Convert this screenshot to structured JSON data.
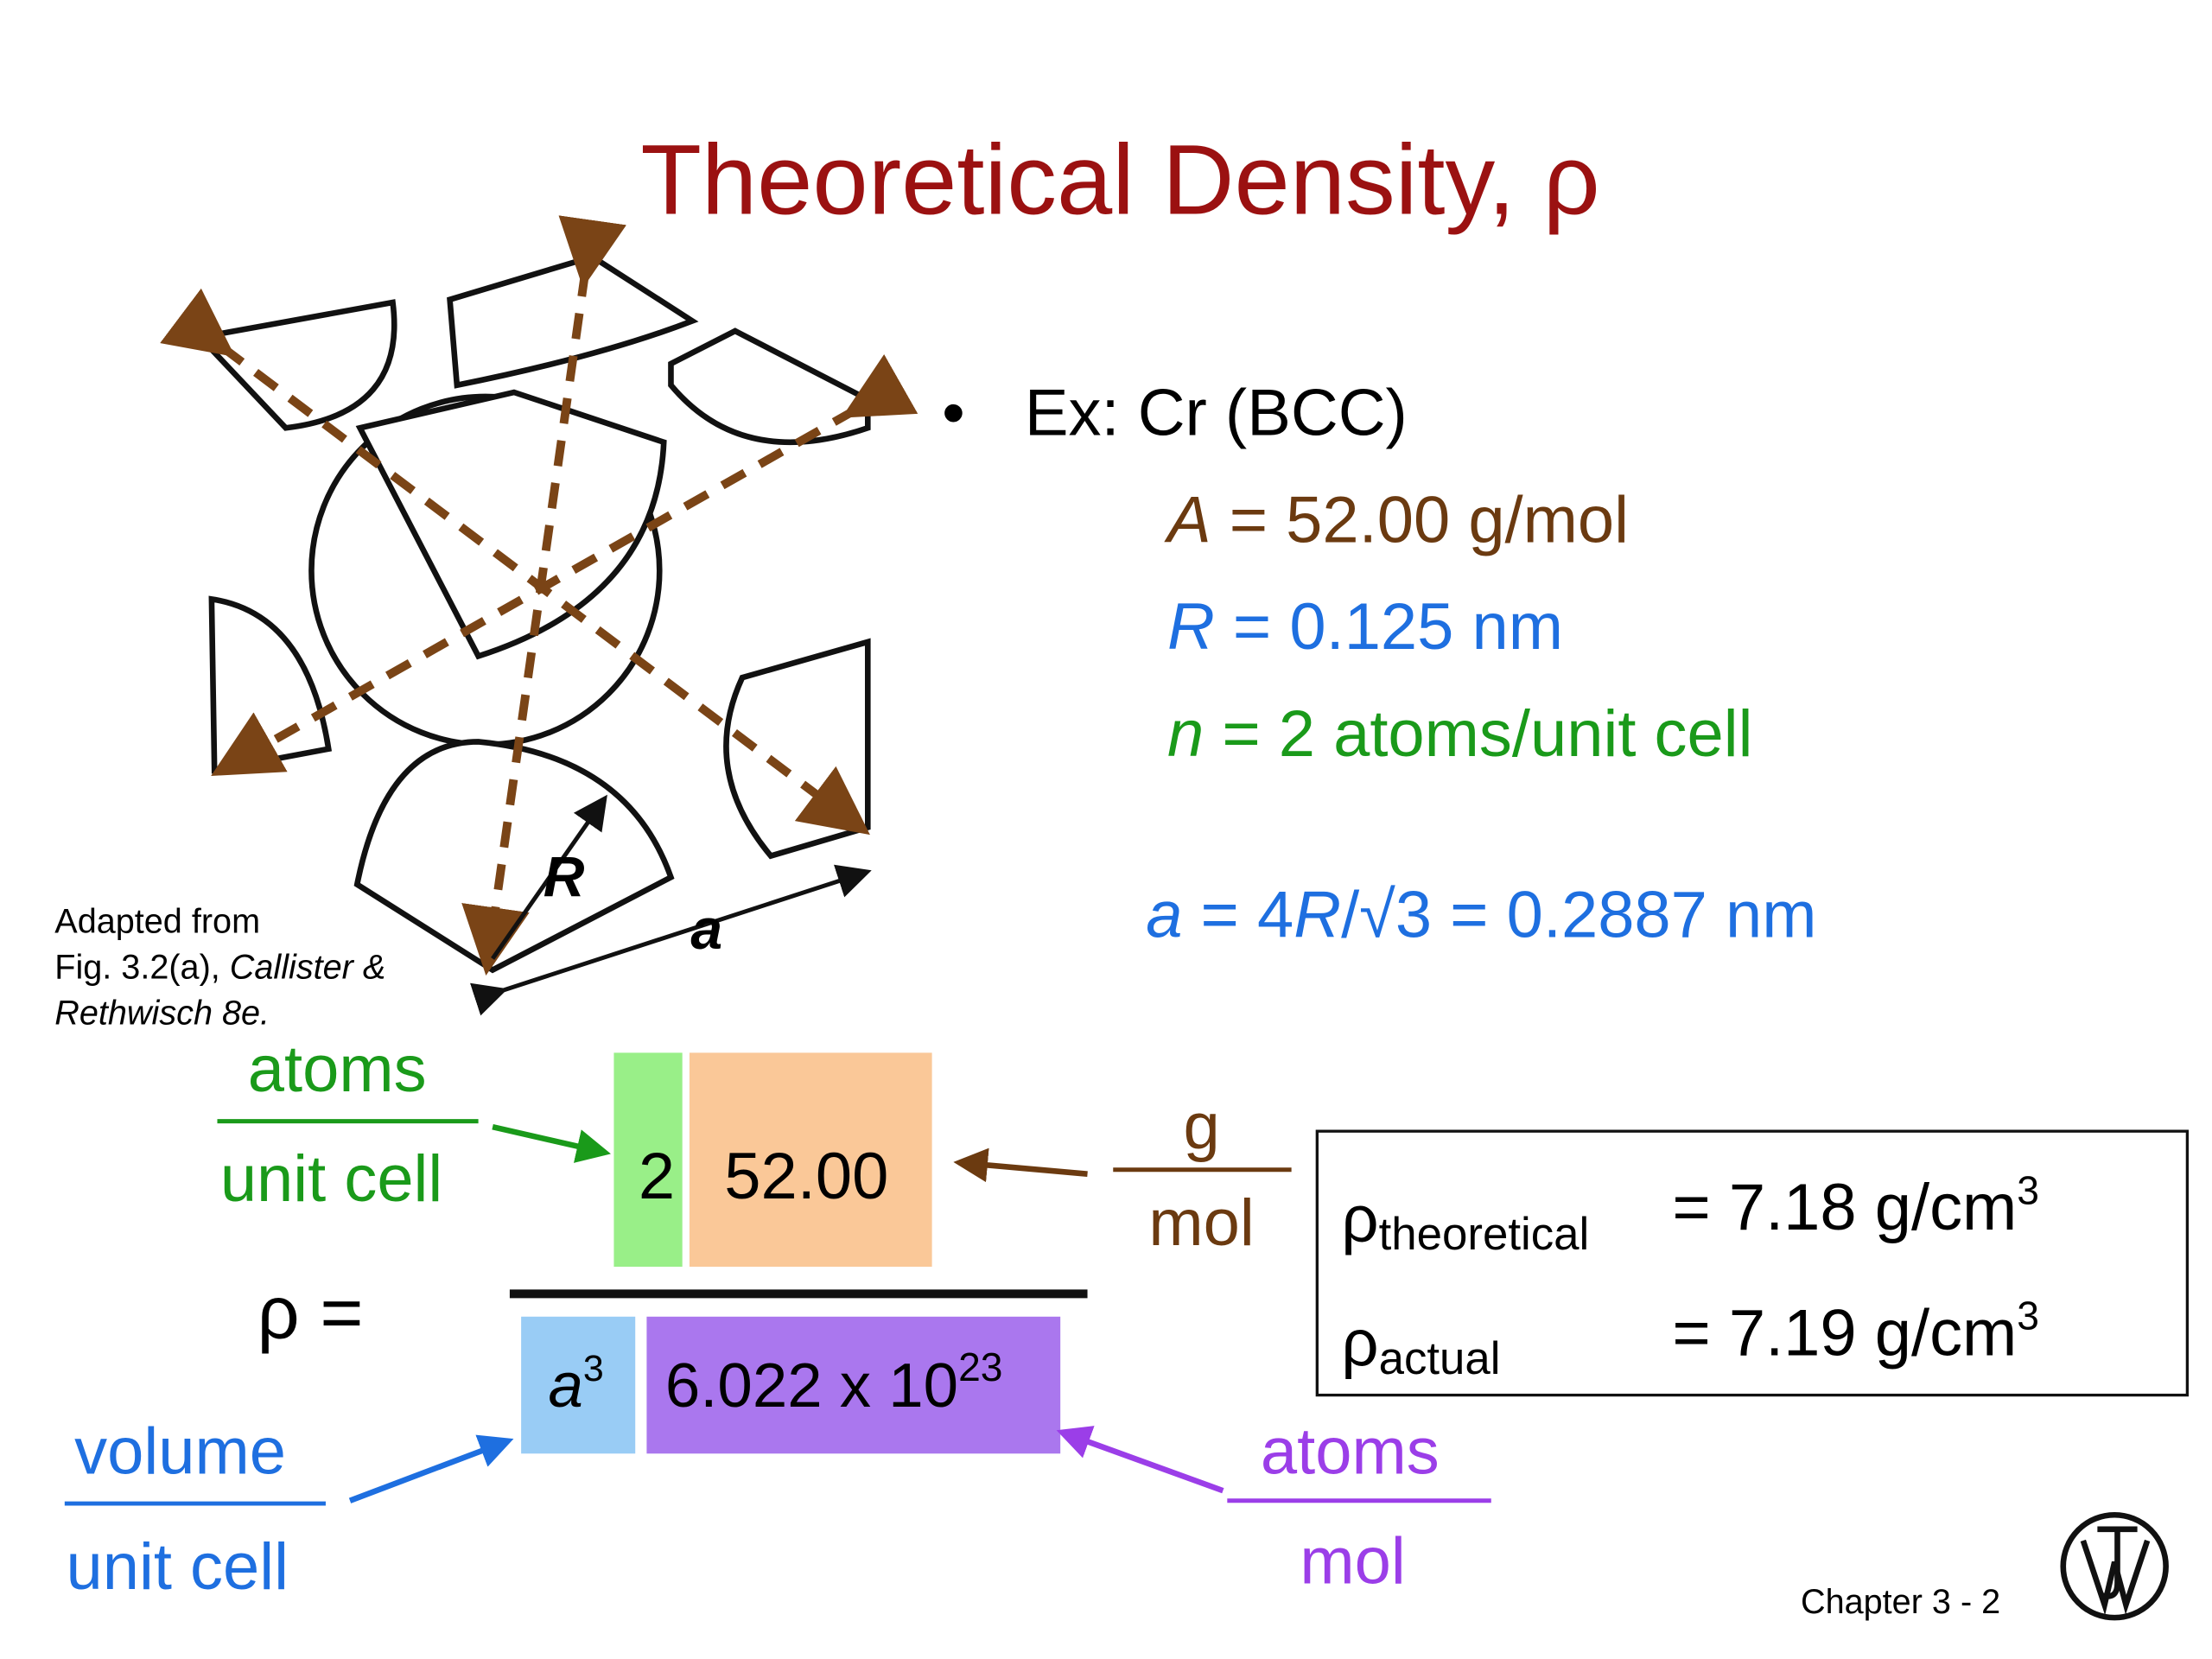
{
  "header": {
    "title": "Theoretical Density, ρ"
  },
  "bullet": {
    "text": "Ex: Cr (BCC)"
  },
  "params": [
    {
      "var": "A",
      "text": " = 52.00 g/mol"
    },
    {
      "var": "R",
      "text": " = 0.125 nm"
    },
    {
      "var": "n",
      "text": " = 2 atoms/unit cell"
    }
  ],
  "lattice": {
    "parts": [
      "a",
      " = 4",
      "R",
      "/√3 = 0.2887 nm"
    ]
  },
  "figure": {
    "label_R": "R",
    "label_a": "a",
    "caption": [
      "Adapted from",
      "Fig. 3.2(a), ",
      "Callister &",
      "Rethwisch 8e."
    ]
  },
  "equation": {
    "lhs": "ρ =",
    "numerator": [
      "2",
      "52.00"
    ],
    "denominator": {
      "a": "a",
      "a_exp": "3",
      "avogadro": "6.022 x 10",
      "avogadro_exp": "23"
    }
  },
  "units": {
    "atoms_per_cell": [
      "atoms",
      "unit cell"
    ],
    "g_per_mol": [
      "g",
      "mol"
    ],
    "volume_per_cell": [
      "volume",
      "unit cell"
    ],
    "atoms_per_mol": [
      "atoms",
      "mol"
    ]
  },
  "results": [
    {
      "symbol": "ρ",
      "sub": "theoretical",
      "text": "= 7.18 g/cm",
      "exp": "3"
    },
    {
      "symbol": "ρ",
      "sub": "actual",
      "text": "= 7.19 g/cm",
      "exp": "3"
    }
  ],
  "footer": {
    "page": "Chapter 3 -  2"
  }
}
